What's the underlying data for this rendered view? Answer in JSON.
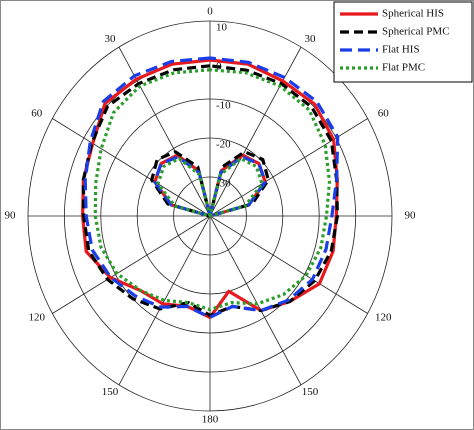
{
  "chart_data": {
    "type": "polar",
    "x": [
      0,
      15,
      30,
      45,
      60,
      75,
      90,
      105,
      120,
      135,
      150,
      165,
      180,
      195,
      210,
      225,
      240,
      255,
      270,
      285,
      300,
      315,
      330,
      345,
      360
    ],
    "rlim": [
      -40,
      10
    ],
    "rticks": [
      -30,
      -20,
      -10,
      0,
      10
    ],
    "thetaticks": [
      0,
      30,
      60,
      90,
      120,
      150,
      180,
      {
        "value": 210,
        "label": "150"
      },
      {
        "value": 240,
        "label": "120"
      },
      {
        "value": 270,
        "label": "90"
      },
      {
        "value": 300,
        "label": "60"
      },
      {
        "value": 330,
        "label": "30"
      }
    ],
    "grid": true,
    "legend": "top-right",
    "series": [
      {
        "name": "Spherical HIS",
        "color": "#e8191c",
        "style": "solid",
        "values": [
          0,
          0.3,
          0.5,
          0.8,
          -2.8,
          -4,
          -5,
          -4.8,
          -8.4,
          -13,
          -14,
          -16,
          -14,
          -20,
          -12,
          -9,
          -5.3,
          -5,
          -5.3,
          -3.8,
          -0.8,
          0.6,
          0,
          0.3,
          0
        ],
        "cross_values": [
          -40,
          -28,
          -22,
          -21,
          -22.5,
          -29,
          -40,
          -40,
          -40,
          -40,
          -40,
          -40,
          -40,
          -40,
          -40,
          -40,
          -40,
          -40,
          -40,
          -29,
          -22.5,
          -21,
          -22,
          -28,
          -40
        ]
      },
      {
        "name": "Spherical PMC",
        "color": "#000000",
        "style": "dashed",
        "values": [
          -1.5,
          -1.2,
          -0.8,
          -0.2,
          -2.5,
          -4,
          -5.3,
          -5.5,
          -7.5,
          -10,
          -12.5,
          -17,
          -14.5,
          -16,
          -12,
          -9,
          -6.8,
          -5.5,
          -5,
          -4,
          -1.5,
          -0.5,
          -0.8,
          -1.3,
          -1.5
        ],
        "cross_values": [
          -40,
          -27,
          -21,
          -19.5,
          -21.5,
          -28,
          -40,
          -40,
          -40,
          -40,
          -40,
          -40,
          -40,
          -40,
          -40,
          -40,
          -40,
          -40,
          -40,
          -28,
          -21.5,
          -19.5,
          -21,
          -27,
          -40
        ]
      },
      {
        "name": "Flat HIS",
        "color": "#1a3de8",
        "style": "longdash",
        "values": [
          0.5,
          1,
          1.5,
          1.5,
          -2,
          -4.5,
          -6,
          -6.5,
          -8.5,
          -11,
          -13,
          -16,
          -14,
          -16,
          -12,
          -9.5,
          -7.5,
          -7,
          -6.5,
          -4,
          0.5,
          1.5,
          1,
          0.8,
          0.5
        ],
        "cross_values": [
          -40,
          -28.5,
          -22.5,
          -21,
          -22.5,
          -29,
          -40,
          -40,
          -40,
          -40,
          -40,
          -40,
          -40,
          -40,
          -40,
          -40,
          -40,
          -40,
          -40,
          -29,
          -22.5,
          -21,
          -22.5,
          -28.5,
          -40
        ]
      },
      {
        "name": "Flat PMC",
        "color": "#2a9d2a",
        "style": "dotted",
        "values": [
          -2.5,
          -2,
          -1.5,
          -2.5,
          -5.5,
          -7.5,
          -8.5,
          -9,
          -10.5,
          -13,
          -15,
          -17,
          -16,
          -17,
          -14,
          -11.5,
          -9.5,
          -8.5,
          -8,
          -6,
          -3.5,
          -1.5,
          -1.5,
          -2,
          -2.5
        ],
        "cross_values": [
          -40,
          -29,
          -23,
          -22,
          -23.5,
          -30,
          -40,
          -40,
          -40,
          -40,
          -40,
          -40,
          -40,
          -40,
          -40,
          -40,
          -40,
          -40,
          -40,
          -30,
          -23.5,
          -22,
          -23,
          -29,
          -40
        ]
      }
    ]
  }
}
